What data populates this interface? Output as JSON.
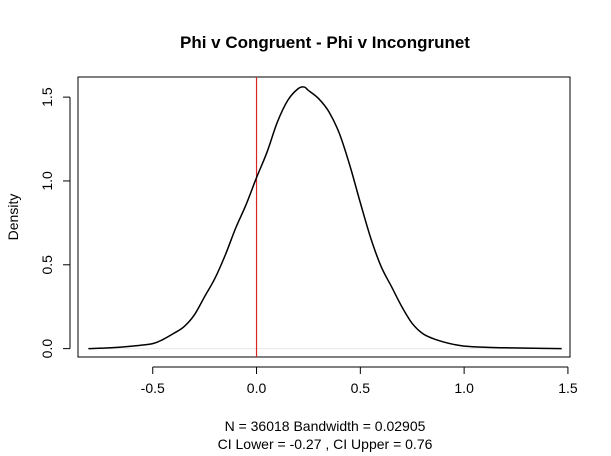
{
  "chart_data": {
    "type": "line",
    "title": "Phi v Congruent - Phi v Incongrunet",
    "ylabel": "Density",
    "xlabel_lines": [
      "N = 36018   Bandwidth = 0.02905",
      "CI Lower =  -0.27 , CI Upper =  0.76"
    ],
    "xlim": [
      -0.86,
      1.51
    ],
    "ylim": [
      -0.05,
      1.62
    ],
    "x_ticks": [
      -0.5,
      0.0,
      0.5,
      1.0,
      1.5
    ],
    "x_tick_labels": [
      "-0.5",
      "0.0",
      "0.5",
      "1.0",
      "1.5"
    ],
    "y_ticks": [
      0.0,
      0.5,
      1.0,
      1.5
    ],
    "y_tick_labels": [
      "0.0",
      "0.5",
      "1.0",
      "1.5"
    ],
    "grid": false,
    "reference_line": {
      "x": 0,
      "color": "#d62728"
    },
    "zero_line_color": "#e6e6e6",
    "series": [
      {
        "color": "#000000",
        "x": [
          -0.81,
          -0.7,
          -0.6,
          -0.5,
          -0.45,
          -0.4,
          -0.35,
          -0.3,
          -0.25,
          -0.2,
          -0.15,
          -0.1,
          -0.05,
          0.0,
          0.05,
          0.1,
          0.15,
          0.2,
          0.23,
          0.25,
          0.3,
          0.35,
          0.4,
          0.45,
          0.5,
          0.55,
          0.6,
          0.65,
          0.7,
          0.75,
          0.8,
          0.85,
          0.9,
          0.95,
          1.0,
          1.1,
          1.2,
          1.3,
          1.47
        ],
        "y": [
          0.0,
          0.005,
          0.015,
          0.03,
          0.055,
          0.09,
          0.13,
          0.2,
          0.31,
          0.42,
          0.56,
          0.72,
          0.86,
          1.02,
          1.17,
          1.35,
          1.48,
          1.55,
          1.56,
          1.54,
          1.49,
          1.41,
          1.28,
          1.09,
          0.87,
          0.66,
          0.49,
          0.37,
          0.25,
          0.15,
          0.09,
          0.06,
          0.04,
          0.025,
          0.015,
          0.008,
          0.005,
          0.003,
          0.0
        ]
      }
    ]
  }
}
